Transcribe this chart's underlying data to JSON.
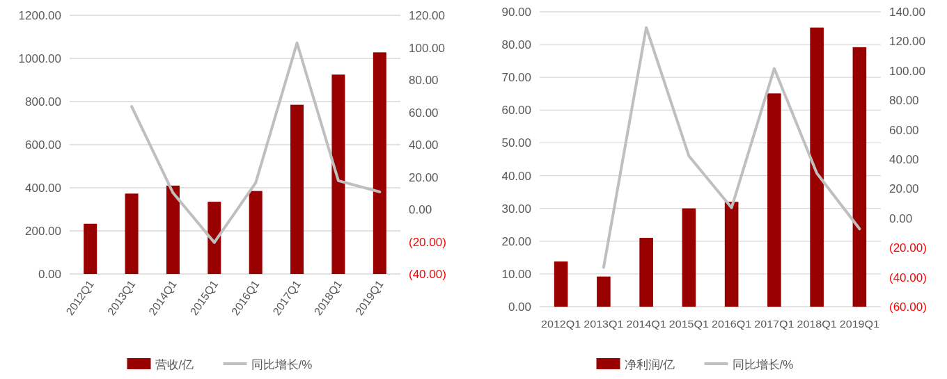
{
  "chart_data": [
    {
      "type": "bar",
      "categories": [
        "2012Q1",
        "2013Q1",
        "2014Q1",
        "2015Q1",
        "2016Q1",
        "2017Q1",
        "2018Q1",
        "2019Q1"
      ],
      "series": [
        {
          "name": "营收/亿",
          "color": "#990000",
          "values": [
            233,
            373,
            410,
            335,
            385,
            785,
            925,
            1028
          ]
        },
        {
          "name": "同比增长/%",
          "type": "line",
          "axis": "y2",
          "color": "#bfbfbf",
          "values": [
            null,
            63.6,
            10.2,
            -20.5,
            16.4,
            102.9,
            17.7,
            10.8
          ]
        }
      ],
      "ylim": [
        0,
        1200
      ],
      "yticks": [
        {
          "value": 0,
          "label": "0.00"
        },
        {
          "value": 200,
          "label": "200.00"
        },
        {
          "value": 400,
          "label": "400.00"
        },
        {
          "value": 600,
          "label": "600.00"
        },
        {
          "value": 800,
          "label": "800.00"
        },
        {
          "value": 1000,
          "label": "1000.00"
        },
        {
          "value": 1200,
          "label": "1200.00"
        }
      ],
      "y2lim": [
        -40,
        120
      ],
      "y2ticks": [
        {
          "value": -40,
          "label": "(40.00)"
        },
        {
          "value": -20,
          "label": "(20.00)"
        },
        {
          "value": 0,
          "label": "0.00"
        },
        {
          "value": 20,
          "label": "20.00"
        },
        {
          "value": 40,
          "label": "40.00"
        },
        {
          "value": 60,
          "label": "60.00"
        },
        {
          "value": 80,
          "label": "80.00"
        },
        {
          "value": 100,
          "label": "100.00"
        },
        {
          "value": 120,
          "label": "120.00"
        }
      ],
      "grid": "y",
      "legend": "bottom"
    },
    {
      "type": "bar",
      "categories": [
        "2012Q1",
        "2013Q1",
        "2014Q1",
        "2015Q1",
        "2016Q1",
        "2017Q1",
        "2018Q1",
        "2019Q1"
      ],
      "series": [
        {
          "name": "净利润/亿",
          "color": "#990000",
          "values": [
            13.8,
            9.2,
            21.0,
            30.0,
            32.0,
            65.1,
            85.2,
            79.2
          ]
        },
        {
          "name": "同比增长/%",
          "type": "line",
          "axis": "y2",
          "color": "#bfbfbf",
          "values": [
            null,
            -33.4,
            129.3,
            42.2,
            7.1,
            101.5,
            30.5,
            -7.2
          ]
        }
      ],
      "ylim": [
        0,
        90
      ],
      "yticks": [
        {
          "value": 0,
          "label": "0.00"
        },
        {
          "value": 10,
          "label": "10.00"
        },
        {
          "value": 20,
          "label": "20.00"
        },
        {
          "value": 30,
          "label": "30.00"
        },
        {
          "value": 40,
          "label": "40.00"
        },
        {
          "value": 50,
          "label": "50.00"
        },
        {
          "value": 60,
          "label": "60.00"
        },
        {
          "value": 70,
          "label": "70.00"
        },
        {
          "value": 80,
          "label": "80.00"
        },
        {
          "value": 90,
          "label": "90.00"
        }
      ],
      "y2lim": [
        -60,
        140
      ],
      "y2ticks": [
        {
          "value": -60,
          "label": "(60.00)"
        },
        {
          "value": -40,
          "label": "(40.00)"
        },
        {
          "value": -20,
          "label": "(20.00)"
        },
        {
          "value": 0,
          "label": "0.00"
        },
        {
          "value": 20,
          "label": "20.00"
        },
        {
          "value": 40,
          "label": "40.00"
        },
        {
          "value": 60,
          "label": "60.00"
        },
        {
          "value": 80,
          "label": "80.00"
        },
        {
          "value": 100,
          "label": "100.00"
        },
        {
          "value": 120,
          "label": "120.00"
        },
        {
          "value": 140,
          "label": "140.00"
        }
      ],
      "grid": "y",
      "legend": "bottom"
    }
  ]
}
